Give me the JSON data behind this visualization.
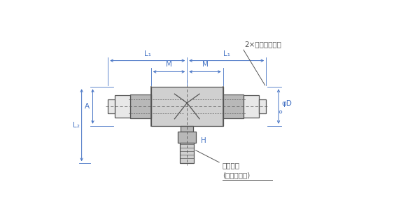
{
  "bg_color": "#ffffff",
  "lc": "#555555",
  "dc": "#4472c4",
  "ann_color": "#555555",
  "gray1": "#d0d0d0",
  "gray2": "#b8b8b8",
  "gray3": "#e8e8e8",
  "gray4": "#a0a0a0",
  "figsize": [
    5.83,
    3.0
  ],
  "dpi": 100,
  "label_L1": "L₁",
  "label_M": "M",
  "label_A": "A",
  "label_L2": "L₂",
  "label_H": "H",
  "label_phiD": "φD",
  "label_tube": "2×適用チューブ",
  "label_thread": "接続ねじ",
  "label_seal": "(シール剤付)"
}
